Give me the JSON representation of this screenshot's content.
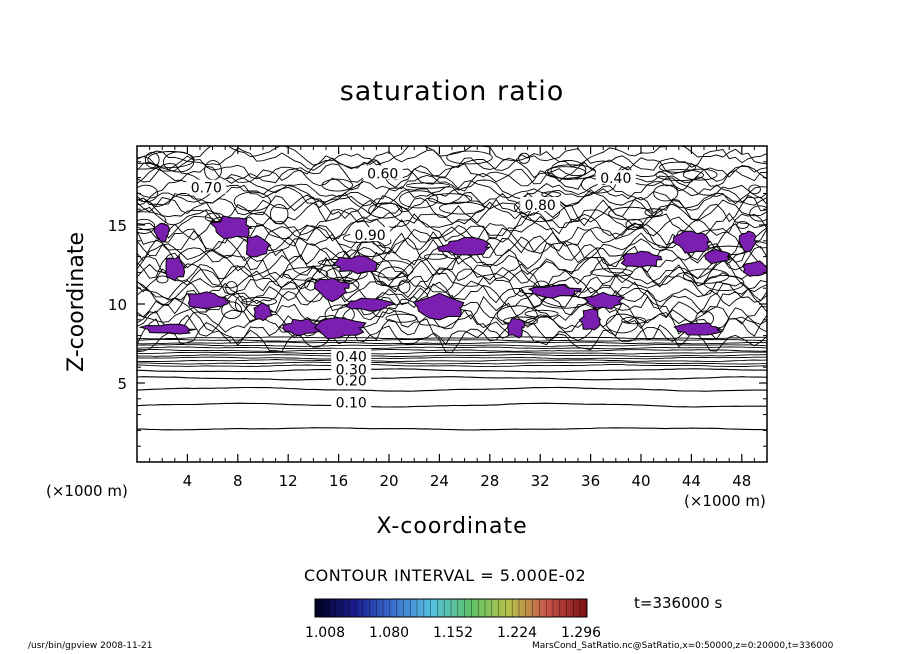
{
  "chart_data": {
    "type": "contour",
    "title": "saturation ratio",
    "xlabel": "X-coordinate",
    "ylabel": "Z-coordinate",
    "x_unit": "(×1000 m)",
    "y_unit": "(×1000 m)",
    "xlim": [
      0,
      50
    ],
    "ylim": [
      0,
      20
    ],
    "x_ticks": [
      4,
      8,
      12,
      16,
      20,
      24,
      28,
      32,
      36,
      40,
      44,
      48
    ],
    "y_ticks": [
      5,
      10,
      15
    ],
    "contour_labels": [
      {
        "value": "0.10",
        "x": 17.0,
        "z": 3.7
      },
      {
        "value": "0.20",
        "x": 17.0,
        "z": 5.1
      },
      {
        "value": "0.30",
        "x": 17.0,
        "z": 5.8
      },
      {
        "value": "0.40",
        "x": 17.0,
        "z": 6.6
      },
      {
        "value": "0.90",
        "x": 18.5,
        "z": 14.3
      },
      {
        "value": "0.60",
        "x": 19.5,
        "z": 18.2
      },
      {
        "value": "0.70",
        "x": 5.5,
        "z": 17.3
      },
      {
        "value": "0.80",
        "x": 32.0,
        "z": 16.2
      },
      {
        "value": "0.40",
        "x": 38.0,
        "z": 17.9
      }
    ],
    "shaded_regions_min": 1.0,
    "contour_interval_text": "CONTOUR INTERVAL = 5.000E-02",
    "colorbar": {
      "tick_labels": [
        "1.008",
        "1.080",
        "1.152",
        "1.224",
        "1.296"
      ],
      "colors": [
        "#000020",
        "#1a1a8c",
        "#3a6fd0",
        "#55c0e0",
        "#5fc36a",
        "#b8c24a",
        "#c8524a",
        "#7a1010"
      ]
    },
    "time_text": "t=336000 s",
    "shade_color": "#7a1fb0"
  },
  "footer": {
    "left": "/usr/bin/gpview   2008-11-21",
    "right": "MarsCond_SatRatio.nc@SatRatio,x=0:50000,z=0:20000,t=336000"
  }
}
